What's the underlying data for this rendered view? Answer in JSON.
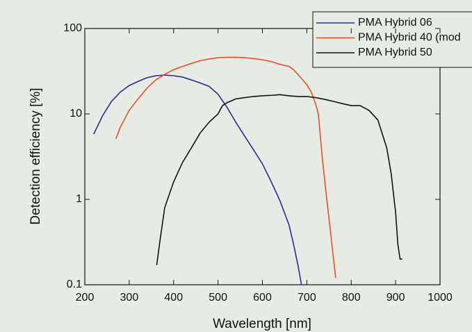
{
  "chart_data": {
    "type": "line",
    "x_label": "Wavelength [nm]",
    "y_label": "Detection efficiency [%]",
    "xlim": [
      200,
      1000
    ],
    "xticks": [
      200,
      300,
      400,
      500,
      600,
      700,
      800,
      900,
      1000
    ],
    "ylim": [
      0.1,
      100
    ],
    "yticks": [
      0.1,
      1,
      10,
      100
    ],
    "y_log": true,
    "legend": "upper right",
    "series": [
      {
        "name": "PMA Hybrid 06",
        "color": "#2b2b9e",
        "x": [
          220,
          240,
          260,
          280,
          300,
          320,
          340,
          360,
          380,
          400,
          420,
          440,
          460,
          480,
          500,
          520,
          540,
          560,
          580,
          600,
          620,
          640,
          660,
          670,
          680,
          688
        ],
        "values": [
          5.8,
          9.5,
          14,
          18,
          21.5,
          24,
          26.5,
          28,
          28.5,
          28,
          27,
          25,
          23,
          21,
          17,
          12,
          8,
          5.5,
          3.8,
          2.6,
          1.6,
          0.95,
          0.5,
          0.3,
          0.17,
          0.1
        ]
      },
      {
        "name": "PMA Hybrid 40 (mod",
        "color": "#f04a24",
        "x": [
          270,
          280,
          300,
          320,
          340,
          360,
          380,
          400,
          420,
          440,
          460,
          480,
          500,
          520,
          540,
          560,
          580,
          600,
          620,
          640,
          660,
          670,
          680,
          700,
          710,
          720,
          726,
          735,
          745,
          755,
          765
        ],
        "values": [
          5.1,
          7,
          11,
          15,
          20,
          25,
          29,
          33,
          36,
          39,
          42,
          44,
          45.5,
          46,
          46,
          45.5,
          44.5,
          43,
          41,
          38,
          36,
          33,
          29,
          22,
          18,
          13,
          10,
          3,
          1,
          0.35,
          0.12
        ]
      },
      {
        "name": "PMA Hybrid 50",
        "color": "#111111",
        "x": [
          362,
          370,
          380,
          400,
          420,
          440,
          460,
          480,
          500,
          510,
          520,
          540,
          560,
          580,
          600,
          620,
          640,
          660,
          680,
          700,
          720,
          740,
          760,
          780,
          800,
          820,
          840,
          860,
          880,
          890,
          900,
          905,
          910,
          915
        ],
        "values": [
          0.17,
          0.35,
          0.8,
          1.6,
          2.7,
          4,
          6,
          8,
          10,
          12.5,
          13.5,
          15,
          15.5,
          16,
          16.3,
          16.5,
          16.8,
          16.3,
          16,
          16,
          15.5,
          14.8,
          14,
          13.2,
          12.5,
          12.5,
          11,
          8.5,
          4,
          2,
          0.7,
          0.3,
          0.2,
          0.2
        ]
      }
    ]
  }
}
